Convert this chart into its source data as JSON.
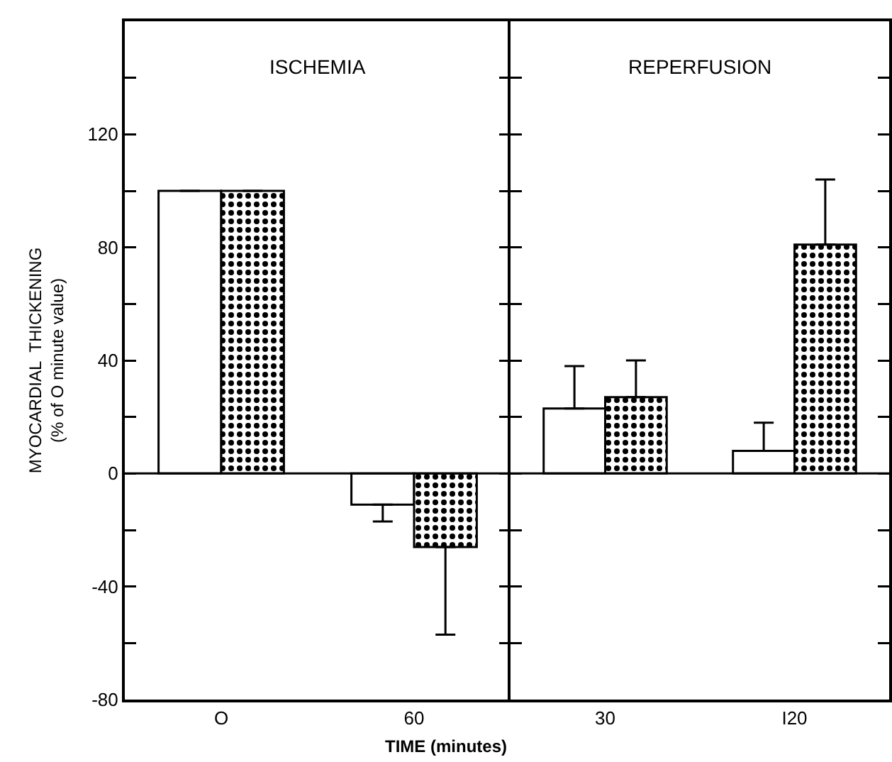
{
  "chart_data": [
    {
      "type": "bar",
      "ylabel": "MYOCARDIAL  THICKENING\n(% of O minute value)",
      "xlabel": "TIME (minutes)",
      "annotations": [
        "ISCHEMIA"
      ],
      "categories": [
        "O",
        "60"
      ],
      "series": [
        {
          "color": "#ffffff",
          "values": [
            100,
            -11
          ],
          "errors": [
            null,
            [
              -17,
              -11
            ]
          ]
        },
        {
          "color": "#000000",
          "values": [
            100,
            -26
          ],
          "errors": [
            null,
            [
              -57,
              -26
            ]
          ]
        }
      ],
      "ylim": [
        -80,
        160
      ],
      "yticks": [
        -80,
        {
          "value": -60,
          "label": null
        },
        -40,
        {
          "value": -20,
          "label": null
        },
        0,
        {
          "value": 20,
          "label": null
        },
        40,
        {
          "value": 60,
          "label": null
        },
        80,
        {
          "value": 100,
          "label": null
        },
        120,
        {
          "value": 140,
          "label": null
        }
      ],
      "ref_lines": [
        {
          "axis": "y",
          "value": 0
        }
      ],
      "grid": false
    },
    {
      "type": "bar",
      "annotations": [
        "REPERFUSION"
      ],
      "categories": [
        "30",
        "I20"
      ],
      "series": [
        {
          "color": "#ffffff",
          "values": [
            23,
            8
          ],
          "errors": [
            [
              23,
              38
            ],
            [
              8,
              18
            ]
          ]
        },
        {
          "color": "#000000",
          "values": [
            27,
            81
          ],
          "errors": [
            [
              27,
              40
            ],
            [
              81,
              104
            ]
          ]
        }
      ],
      "ylim": [
        -80,
        160
      ],
      "yticks": [
        {
          "value": -80,
          "label": null
        },
        {
          "value": -60,
          "label": null
        },
        {
          "value": -40,
          "label": null
        },
        {
          "value": -20,
          "label": null
        },
        {
          "value": 0,
          "label": null
        },
        {
          "value": 20,
          "label": null
        },
        {
          "value": 40,
          "label": null
        },
        {
          "value": 60,
          "label": null
        },
        {
          "value": 80,
          "label": null
        },
        {
          "value": 100,
          "label": null
        },
        {
          "value": 120,
          "label": null
        },
        {
          "value": 140,
          "label": null
        }
      ],
      "ref_lines": [
        {
          "axis": "y",
          "value": 0
        }
      ],
      "tick_labels": "x",
      "grid": false
    }
  ]
}
